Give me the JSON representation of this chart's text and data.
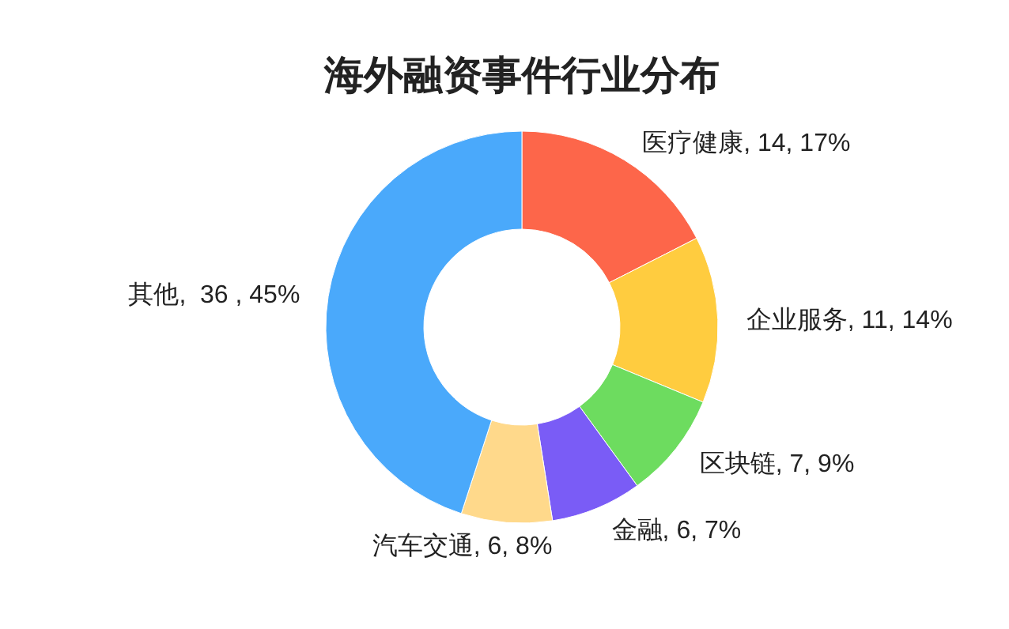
{
  "chart_data": {
    "type": "donut",
    "title": "海外融资事件行业分布",
    "categories": [
      "医疗健康",
      "企业服务",
      "区块链",
      "金融",
      "汽车交通",
      "其他"
    ],
    "values": [
      14,
      11,
      7,
      6,
      6,
      36
    ],
    "value_labels": [
      ", 14, 17%",
      ", 11, 14%",
      ", 7, 9%",
      ", 6, 7%",
      ", 6, 8%",
      ",  36 , 45%"
    ],
    "colors": [
      "#fd664a",
      "#ffcc3f",
      "#6ddc5f",
      "#7a5cf6",
      "#ffd98b",
      "#4aa9fb"
    ]
  }
}
